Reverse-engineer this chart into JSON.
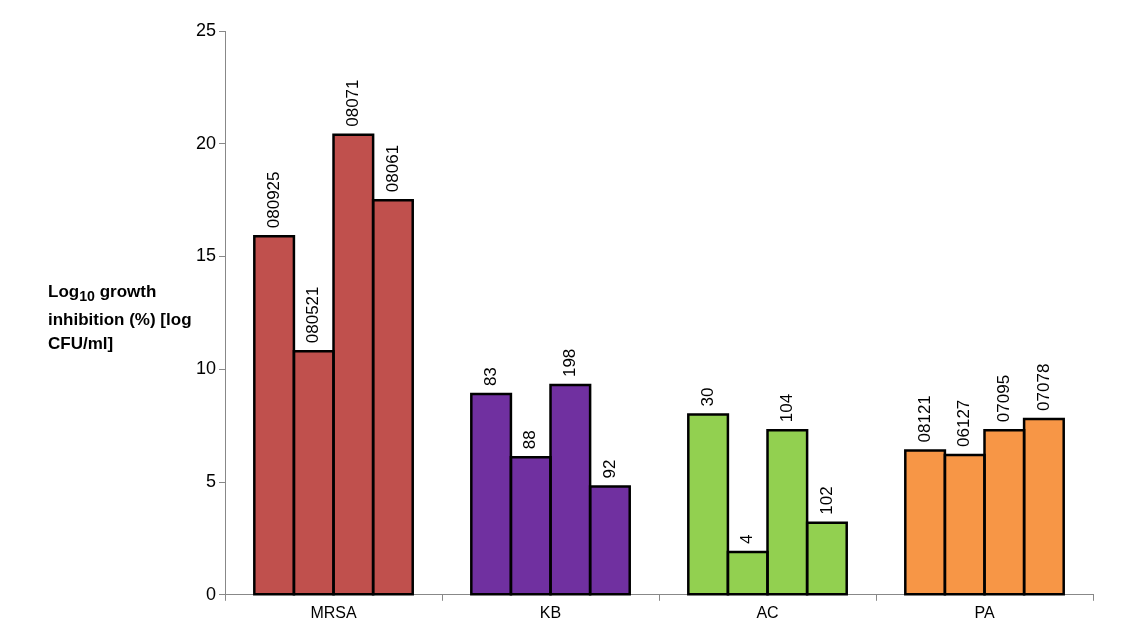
{
  "chart_data": {
    "type": "bar",
    "ylabel": "Log$_{10}$ growth inhibition (%) [log CFU/ml]",
    "categories": [
      "MRSA",
      "KB",
      "AC",
      "PA"
    ],
    "ylim": [
      0,
      25
    ],
    "yticks": [
      0,
      5,
      10,
      15,
      20,
      25
    ],
    "series": [
      {
        "colors": [
          "#c0504d",
          "#7030a0",
          "#92d050",
          "#f79646"
        ],
        "values": [
          15.9,
          8.9,
          8.0,
          6.4
        ]
      },
      {
        "colors": [
          "#c0504d",
          "#7030a0",
          "#92d050",
          "#f79646"
        ],
        "values": [
          10.8,
          6.1,
          1.9,
          6.2
        ]
      },
      {
        "colors": [
          "#c0504d",
          "#7030a0",
          "#92d050",
          "#f79646"
        ],
        "values": [
          20.4,
          9.3,
          7.3,
          7.3
        ]
      },
      {
        "colors": [
          "#c0504d",
          "#7030a0",
          "#92d050",
          "#f79646"
        ],
        "values": [
          17.5,
          4.8,
          3.2,
          7.8
        ]
      }
    ],
    "annotations": [
      "080925",
      "080521",
      "08071",
      "08061",
      "83",
      "88",
      "198",
      "92",
      "30",
      "4",
      "104",
      "102",
      "08121",
      "06127",
      "07095",
      "07078"
    ]
  }
}
